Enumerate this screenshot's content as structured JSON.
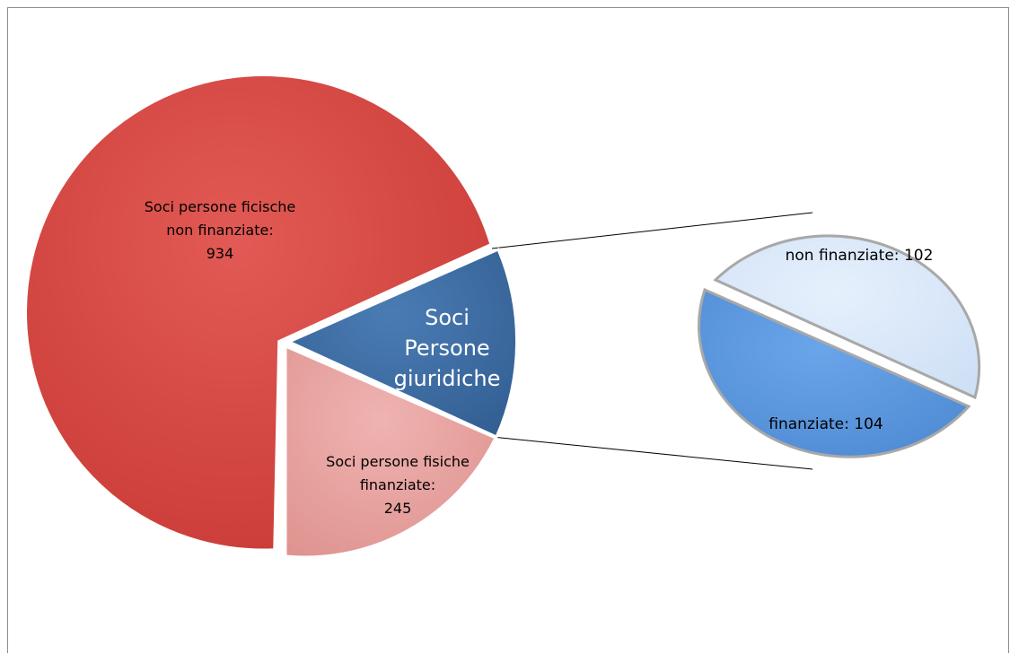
{
  "chart_data": {
    "type": "pie",
    "subtype": "pie-of-pie",
    "main_pie": {
      "slices": [
        {
          "label_lines": [
            "Soci persone ficische",
            "non finanziate:",
            "934"
          ],
          "name": "Soci persone ficische non finanziate",
          "value": 934,
          "color": "#d8433f"
        },
        {
          "label_lines": [
            "Soci persone fisiche",
            "finanziate:",
            "245"
          ],
          "name": "Soci persone fisiche finanziate",
          "value": 245,
          "color": "#e8a2a0"
        },
        {
          "label_lines": [
            "Soci",
            "Persone",
            "giuridiche"
          ],
          "name": "Soci Persone giuridiche",
          "value": 206,
          "color": "#3e6ea5"
        }
      ]
    },
    "secondary_pie": {
      "of": "Soci Persone giuridiche",
      "slices": [
        {
          "label": "non finanziate: 102",
          "name": "non finanziate",
          "value": 102,
          "color": "#dbe9fb"
        },
        {
          "label": "finanziate: 104",
          "name": "finanziate",
          "value": 104,
          "color": "#5e9be0"
        }
      ]
    },
    "legend": "none"
  }
}
